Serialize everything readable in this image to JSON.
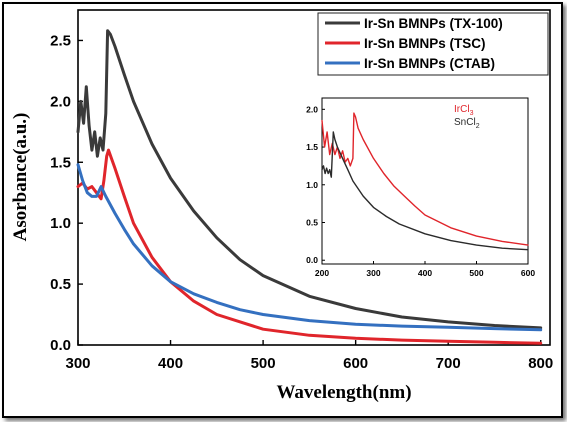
{
  "chart_data": [
    {
      "type": "line",
      "title": "",
      "xlabel": "Wavelength(nm)",
      "ylabel": "Asorbance(a.u.)",
      "xlim": [
        300,
        810
      ],
      "ylim": [
        0.0,
        2.75
      ],
      "xticks": [
        "300",
        "400",
        "500",
        "600",
        "700",
        "800"
      ],
      "yticks": [
        "0.0",
        "0.5",
        "1.0",
        "1.5",
        "2.0",
        "2.5"
      ],
      "legend_position": "top-right",
      "grid": false,
      "series": [
        {
          "name": "Ir-Sn BMNPs (TX-100)",
          "color": "#3a3a3a",
          "x": [
            300,
            303,
            306,
            309,
            312,
            315,
            318,
            321,
            324,
            327,
            330,
            332,
            335,
            340,
            350,
            360,
            380,
            400,
            425,
            450,
            475,
            500,
            550,
            600,
            650,
            700,
            750,
            800
          ],
          "y": [
            1.75,
            2.0,
            1.82,
            2.12,
            1.8,
            1.6,
            1.75,
            1.55,
            1.7,
            1.6,
            1.9,
            2.58,
            2.55,
            2.45,
            2.22,
            2.0,
            1.65,
            1.37,
            1.1,
            0.88,
            0.7,
            0.57,
            0.4,
            0.3,
            0.23,
            0.19,
            0.16,
            0.14
          ]
        },
        {
          "name": "Ir-Sn BMNPs (TSC)",
          "color": "#e0252b",
          "x": [
            300,
            305,
            310,
            315,
            320,
            325,
            328,
            331,
            333,
            340,
            350,
            360,
            380,
            400,
            425,
            450,
            500,
            550,
            600,
            650,
            700,
            750,
            800
          ],
          "y": [
            1.3,
            1.33,
            1.28,
            1.3,
            1.25,
            1.2,
            1.35,
            1.55,
            1.6,
            1.45,
            1.22,
            1.0,
            0.72,
            0.52,
            0.36,
            0.25,
            0.13,
            0.08,
            0.055,
            0.04,
            0.03,
            0.022,
            0.015
          ]
        },
        {
          "name": "Ir-Sn BMNPs (CTAB)",
          "color": "#3470c0",
          "x": [
            300,
            305,
            310,
            315,
            320,
            325,
            330,
            340,
            350,
            360,
            380,
            400,
            425,
            450,
            475,
            500,
            550,
            600,
            650,
            700,
            750,
            800
          ],
          "y": [
            1.48,
            1.35,
            1.25,
            1.22,
            1.22,
            1.3,
            1.22,
            1.08,
            0.95,
            0.83,
            0.65,
            0.52,
            0.42,
            0.35,
            0.29,
            0.25,
            0.2,
            0.17,
            0.155,
            0.145,
            0.135,
            0.125
          ]
        }
      ]
    },
    {
      "type": "line",
      "title": "",
      "xlabel": "",
      "ylabel": "",
      "xlim": [
        200,
        600
      ],
      "ylim": [
        -0.05,
        2.15
      ],
      "xticks": [
        "200",
        "300",
        "400",
        "500",
        "600"
      ],
      "yticks": [
        "0.0",
        "0.5",
        "1.0",
        "1.5",
        "2.0"
      ],
      "legend_position": "top-right",
      "grid": false,
      "series": [
        {
          "name": "IrCl3",
          "name_base": "IrCl",
          "name_sub": "3",
          "color": "#e0252b",
          "x": [
            200,
            205,
            210,
            215,
            220,
            225,
            230,
            235,
            240,
            245,
            250,
            255,
            260,
            262,
            265,
            270,
            280,
            300,
            320,
            340,
            360,
            380,
            400,
            450,
            500,
            550,
            600
          ],
          "y": [
            1.85,
            1.5,
            1.7,
            1.4,
            1.55,
            1.4,
            1.5,
            1.35,
            1.45,
            1.3,
            1.35,
            1.25,
            1.35,
            1.95,
            1.9,
            1.75,
            1.6,
            1.35,
            1.15,
            0.98,
            0.85,
            0.72,
            0.6,
            0.43,
            0.32,
            0.25,
            0.2
          ]
        },
        {
          "name": "SnCl2",
          "name_base": "SnCl",
          "name_sub": "2",
          "color": "#2b2b2b",
          "x": [
            200,
            203,
            206,
            209,
            212,
            215,
            218,
            222,
            225,
            230,
            240,
            250,
            260,
            280,
            300,
            325,
            350,
            400,
            450,
            500,
            550,
            600
          ],
          "y": [
            1.2,
            1.25,
            1.15,
            1.22,
            1.15,
            1.2,
            1.1,
            1.7,
            1.6,
            1.5,
            1.35,
            1.2,
            1.05,
            0.85,
            0.7,
            0.58,
            0.48,
            0.35,
            0.26,
            0.2,
            0.16,
            0.14
          ]
        }
      ]
    }
  ]
}
